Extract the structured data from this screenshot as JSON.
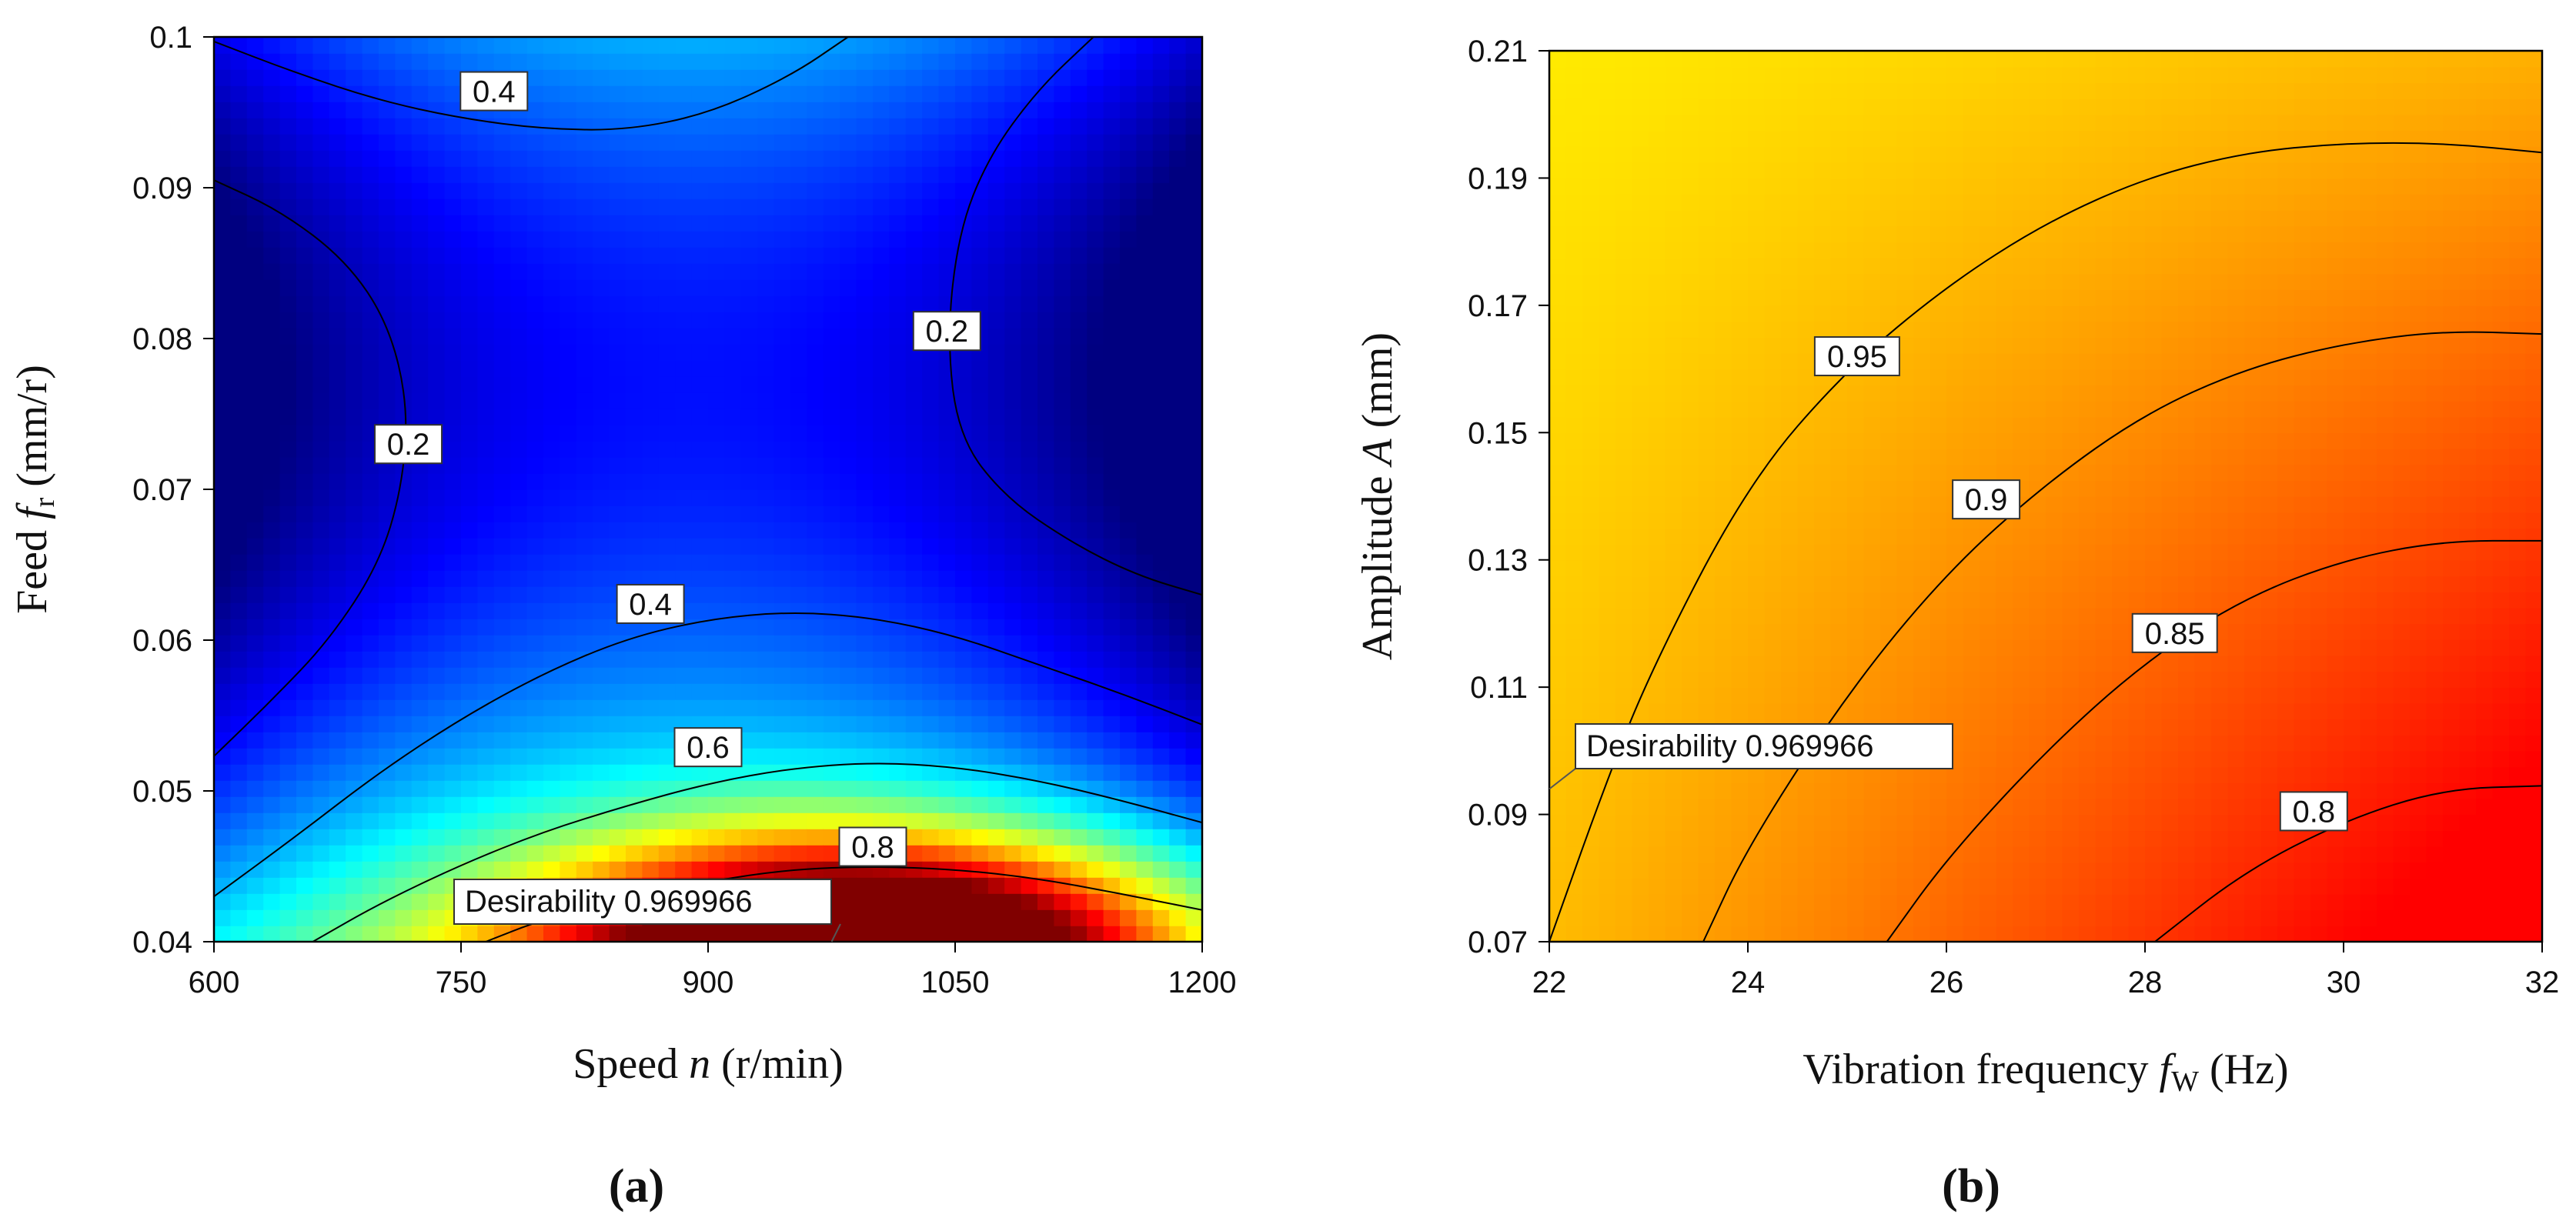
{
  "chart_data": [
    {
      "type": "heatmap",
      "panel_label": "(a)",
      "xlabel_parts": [
        "Speed ",
        "n",
        " (r/min)"
      ],
      "ylabel_parts": [
        "Feed ",
        "f",
        "r",
        " (mm/r)"
      ],
      "xlim": [
        600,
        1200
      ],
      "ylim": [
        0.04,
        0.1
      ],
      "xticks": [
        600,
        750,
        900,
        1050,
        1200
      ],
      "xtick_labels": [
        "600",
        "750",
        "900",
        "1050",
        "1200"
      ],
      "yticks": [
        0.04,
        0.05,
        0.06,
        0.07,
        0.08,
        0.09,
        0.1
      ],
      "ytick_labels": [
        "0.04",
        "0.05",
        "0.06",
        "0.07",
        "0.08",
        "0.09",
        "0.1"
      ],
      "colormap": "jet",
      "color_range": [
        0.1,
        0.97
      ],
      "contours": [
        {
          "level": "0.4",
          "label_at": [
            770,
            0.0964
          ],
          "points": [
            [
              600,
              0.0997
            ],
            [
              650,
              0.0976
            ],
            [
              700,
              0.0958
            ],
            [
              750,
              0.0946
            ],
            [
              800,
              0.0939
            ],
            [
              850,
              0.0938
            ],
            [
              900,
              0.0949
            ],
            [
              950,
              0.0974
            ],
            [
              985,
              0.1
            ]
          ]
        },
        {
          "level": "0.2",
          "label_at": [
            1045,
            0.0805
          ],
          "points": [
            [
              1134,
              0.1
            ],
            [
              1100,
              0.0965
            ],
            [
              1070,
              0.092
            ],
            [
              1052,
              0.087
            ],
            [
              1045,
              0.08
            ],
            [
              1052,
              0.0735
            ],
            [
              1080,
              0.0695
            ],
            [
              1120,
              0.0665
            ],
            [
              1160,
              0.0643
            ],
            [
              1200,
              0.063
            ]
          ]
        },
        {
          "level": "0.2",
          "label_at": [
            718,
            0.073
          ],
          "points": [
            [
              600,
              0.0905
            ],
            [
              640,
              0.0885
            ],
            [
              680,
              0.0852
            ],
            [
              706,
              0.081
            ],
            [
              718,
              0.0755
            ],
            [
              714,
              0.07
            ],
            [
              700,
              0.065
            ],
            [
              670,
              0.06
            ],
            [
              635,
              0.056
            ],
            [
              600,
              0.0523
            ]
          ]
        },
        {
          "level": "0.4",
          "label_at": [
            865,
            0.0624
          ],
          "points": [
            [
              600,
              0.043
            ],
            [
              650,
              0.047
            ],
            [
              700,
              0.0512
            ],
            [
              750,
              0.0548
            ],
            [
              800,
              0.0578
            ],
            [
              850,
              0.0601
            ],
            [
              900,
              0.0614
            ],
            [
              950,
              0.0619
            ],
            [
              1000,
              0.0615
            ],
            [
              1050,
              0.0603
            ],
            [
              1100,
              0.0584
            ],
            [
              1150,
              0.0565
            ],
            [
              1200,
              0.0544
            ]
          ]
        },
        {
          "level": "0.6",
          "label_at": [
            900,
            0.0529
          ],
          "points": [
            [
              660,
              0.04
            ],
            [
              700,
              0.0425
            ],
            [
              750,
              0.0451
            ],
            [
              800,
              0.0473
            ],
            [
              850,
              0.049
            ],
            [
              900,
              0.0505
            ],
            [
              950,
              0.0515
            ],
            [
              1000,
              0.0519
            ],
            [
              1050,
              0.0516
            ],
            [
              1100,
              0.0507
            ],
            [
              1150,
              0.0494
            ],
            [
              1200,
              0.0479
            ]
          ]
        },
        {
          "level": "0.8",
          "label_at": [
            1000,
            0.0463
          ],
          "points": [
            [
              765,
              0.04
            ],
            [
              800,
              0.0415
            ],
            [
              850,
              0.0428
            ],
            [
              900,
              0.044
            ],
            [
              950,
              0.0448
            ],
            [
              1000,
              0.045
            ],
            [
              1050,
              0.0448
            ],
            [
              1100,
              0.0442
            ],
            [
              1150,
              0.0432
            ],
            [
              1200,
              0.0421
            ]
          ]
        }
      ],
      "annotation": {
        "text": "Desirability 0.969966",
        "point": [
          975,
          0.04
        ]
      }
    },
    {
      "type": "heatmap",
      "panel_label": "(b)",
      "xlabel_parts": [
        "Vibration frequency ",
        "f",
        "W",
        " (Hz)"
      ],
      "ylabel_parts": [
        "Amplitude ",
        "A",
        " (mm)"
      ],
      "xlim": [
        22,
        32
      ],
      "ylim": [
        0.07,
        0.21
      ],
      "xticks": [
        22,
        24,
        26,
        28,
        30,
        32
      ],
      "xtick_labels": [
        "22",
        "24",
        "26",
        "28",
        "30",
        "32"
      ],
      "yticks": [
        0.07,
        0.09,
        0.11,
        0.13,
        0.15,
        0.17,
        0.19,
        0.21
      ],
      "ytick_labels": [
        "0.07",
        "0.09",
        "0.11",
        "0.13",
        "0.15",
        "0.17",
        "0.19",
        "0.21"
      ],
      "colormap": "red-yellow",
      "color_range": [
        0.75,
        1.0
      ],
      "contours": [
        {
          "level": "0.95",
          "label_at": [
            25.1,
            0.162
          ],
          "points": [
            [
              22,
              0.07
            ],
            [
              22.5,
              0.092
            ],
            [
              23,
              0.112
            ],
            [
              24,
              0.142
            ],
            [
              25,
              0.16
            ],
            [
              26,
              0.173
            ],
            [
              27,
              0.183
            ],
            [
              28,
              0.19
            ],
            [
              29,
              0.194
            ],
            [
              30,
              0.1955
            ],
            [
              31,
              0.1955
            ],
            [
              32,
              0.194
            ]
          ]
        },
        {
          "level": "0.9",
          "label_at": [
            26.4,
            0.1395
          ],
          "points": [
            [
              23.55,
              0.07
            ],
            [
              24,
              0.085
            ],
            [
              25,
              0.109
            ],
            [
              26,
              0.128
            ],
            [
              27,
              0.142
            ],
            [
              28,
              0.153
            ],
            [
              29,
              0.16
            ],
            [
              30,
              0.164
            ],
            [
              31,
              0.166
            ],
            [
              32,
              0.1655
            ]
          ]
        },
        {
          "level": "0.85",
          "label_at": [
            28.3,
            0.1185
          ],
          "points": [
            [
              25.4,
              0.07
            ],
            [
              26,
              0.083
            ],
            [
              27,
              0.1
            ],
            [
              28,
              0.114
            ],
            [
              29,
              0.124
            ],
            [
              30,
              0.13
            ],
            [
              31,
              0.133
            ],
            [
              32,
              0.133
            ]
          ]
        },
        {
          "level": "0.8",
          "label_at": [
            29.7,
            0.0905
          ],
          "points": [
            [
              28.1,
              0.07
            ],
            [
              29,
              0.081
            ],
            [
              30,
              0.089
            ],
            [
              31,
              0.094
            ],
            [
              32,
              0.0945
            ]
          ]
        }
      ],
      "annotation": {
        "text": "Desirability 0.969966",
        "point": [
          22,
          0.094
        ]
      }
    }
  ]
}
